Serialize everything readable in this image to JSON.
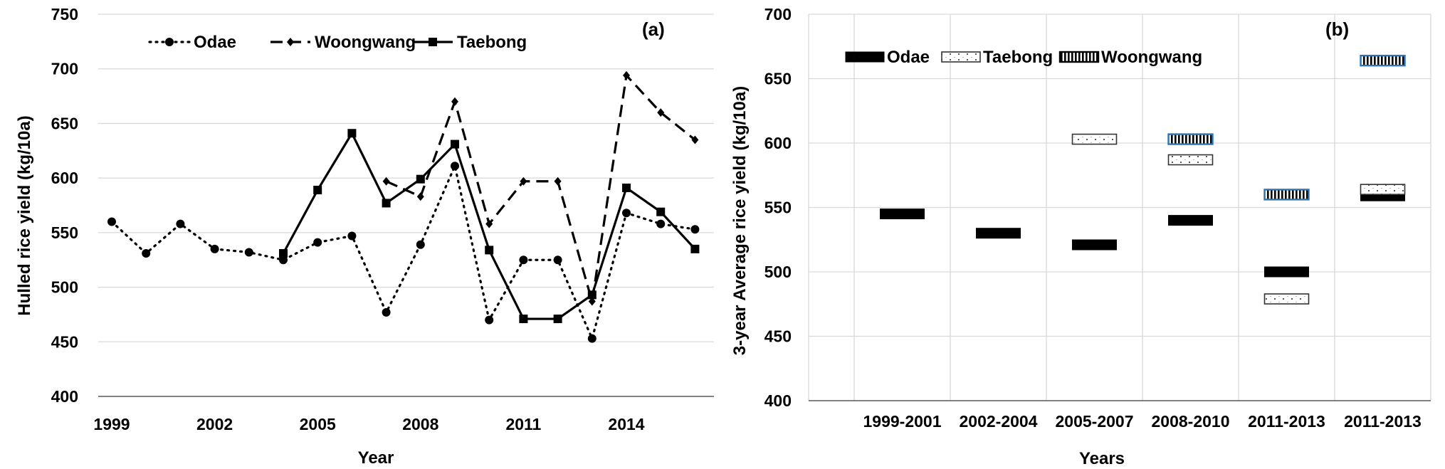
{
  "chart_data": [
    {
      "type": "line",
      "panel_label": "(a)",
      "xlabel": "Year",
      "ylabel": "Hulled rice yield (kg/10a)",
      "ylim": [
        400,
        750
      ],
      "yticks": [
        400,
        450,
        500,
        550,
        600,
        650,
        700,
        750
      ],
      "xlim": [
        1999,
        2016
      ],
      "xticks": [
        1999,
        2002,
        2005,
        2008,
        2011,
        2014
      ],
      "grid": "horizontal",
      "legend_position": "top",
      "series": [
        {
          "name": "Odae",
          "style": "dotted",
          "marker": "circle",
          "x": [
            1999,
            2000,
            2001,
            2002,
            2003,
            2004,
            2005,
            2006,
            2007,
            2008,
            2009,
            2010,
            2011,
            2012,
            2013,
            2014,
            2015,
            2016
          ],
          "y": [
            560,
            531,
            558,
            535,
            532,
            525,
            541,
            547,
            477,
            539,
            611,
            470,
            525,
            525,
            453,
            568,
            558,
            553
          ]
        },
        {
          "name": "Woongwang",
          "style": "dashed",
          "marker": "diamond",
          "x": [
            2007,
            2008,
            2009,
            2010,
            2011,
            2012,
            2013,
            2014,
            2015,
            2016
          ],
          "y": [
            597,
            583,
            670,
            558,
            597,
            597,
            487,
            694,
            660,
            635
          ]
        },
        {
          "name": "Taebong",
          "style": "solid",
          "marker": "square",
          "x": [
            2004,
            2005,
            2006,
            2007,
            2008,
            2009,
            2010,
            2011,
            2012,
            2013,
            2014,
            2015,
            2016
          ],
          "y": [
            531,
            589,
            641,
            577,
            599,
            631,
            534,
            471,
            471,
            493,
            591,
            569,
            535
          ]
        }
      ]
    },
    {
      "type": "bar",
      "subtype": "floating-marker",
      "panel_label": "(b)",
      "xlabel": "Years",
      "ylabel": "3-year Average rice yield (kg/10a)",
      "ylim": [
        400,
        700
      ],
      "yticks": [
        400,
        450,
        500,
        550,
        600,
        650,
        700
      ],
      "grid": "both",
      "legend_position": "top",
      "categories": [
        "1999-2001",
        "2002-2004",
        "2005-2007",
        "2008-2010",
        "2011-2013",
        "2011-2013"
      ],
      "series": [
        {
          "name": "Odae",
          "pattern": "solid-black",
          "values": [
            545,
            530,
            521,
            540,
            500,
            559
          ]
        },
        {
          "name": "Taebong",
          "pattern": "dotted",
          "values": [
            null,
            null,
            603,
            587,
            479,
            564
          ]
        },
        {
          "name": "Woongwang",
          "pattern": "vertical-stripes",
          "values": [
            null,
            null,
            null,
            603,
            560,
            664
          ]
        }
      ]
    }
  ],
  "colors": {
    "line": "#000000",
    "grid": "#d9d9d9",
    "axis": "#595959",
    "woongwang_outline": "#2e75b6"
  }
}
